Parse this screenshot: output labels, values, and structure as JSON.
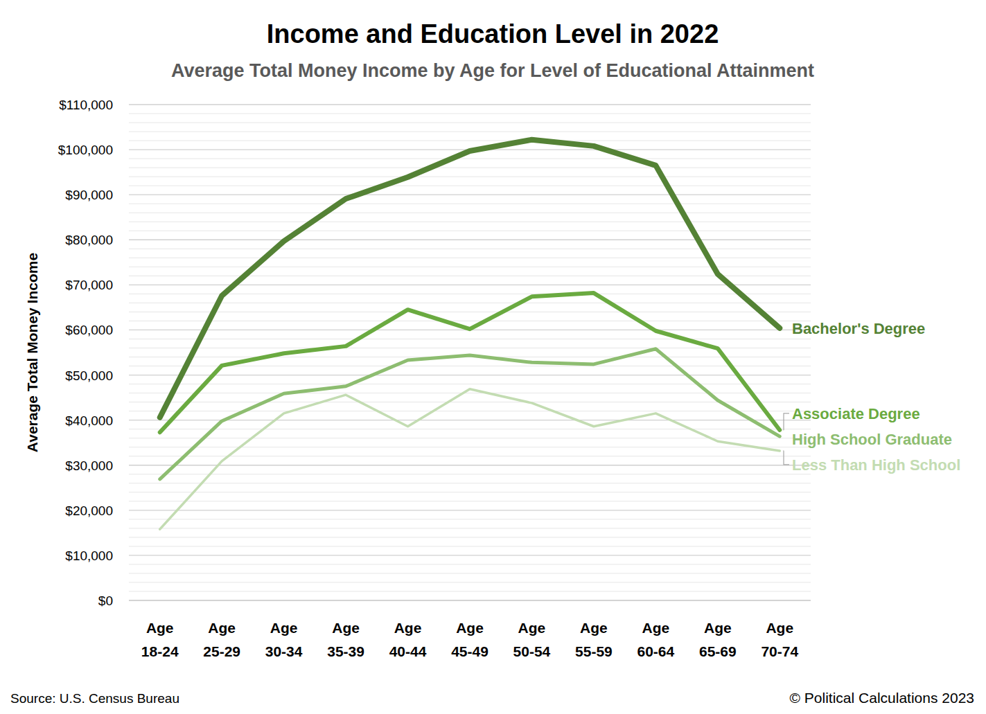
{
  "chart_data": {
    "type": "line",
    "title": "Income and Education Level in 2022",
    "subtitle": "Average Total Money Income by Age for Level of Educational Attainment",
    "y_label": "Average Total Money Income",
    "source": "Source: U.S. Census Bureau",
    "credit": "© Political Calculations 2023",
    "categories": [
      "Age 18-24",
      "Age 25-29",
      "Age 30-34",
      "Age 35-39",
      "Age 40-44",
      "Age 45-49",
      "Age 50-54",
      "Age 55-59",
      "Age 60-64",
      "Age 65-69",
      "Age 70-74"
    ],
    "series": [
      {
        "name": "Bachelor's Degree",
        "color": "#548235",
        "values": [
          40600,
          67600,
          79700,
          89100,
          93900,
          99700,
          102200,
          100800,
          96500,
          72400,
          60400
        ]
      },
      {
        "name": "Associate Degree",
        "color": "#6aaa40",
        "values": [
          37300,
          52100,
          54800,
          56400,
          64500,
          60200,
          67400,
          68200,
          59800,
          55900,
          37800
        ]
      },
      {
        "name": "High School Graduate",
        "color": "#8dbd70",
        "values": [
          26900,
          39800,
          45900,
          47500,
          53300,
          54400,
          52800,
          52400,
          55800,
          44400,
          36400
        ]
      },
      {
        "name": "Less Than High School",
        "color": "#c3dcb2",
        "values": [
          15800,
          30900,
          41500,
          45600,
          38600,
          46900,
          43800,
          38600,
          41500,
          35300,
          33200
        ]
      }
    ],
    "ylim": [
      0,
      110000
    ],
    "yticks": [
      {
        "value": 0,
        "label": "$0"
      },
      {
        "value": 10000,
        "label": "$10,000"
      },
      {
        "value": 20000,
        "label": "$20,000"
      },
      {
        "value": 30000,
        "label": "$30,000"
      },
      {
        "value": 40000,
        "label": "$40,000"
      },
      {
        "value": 50000,
        "label": "$50,000"
      },
      {
        "value": 60000,
        "label": "$60,000"
      },
      {
        "value": 70000,
        "label": "$70,000"
      },
      {
        "value": 80000,
        "label": "$80,000"
      },
      {
        "value": 90000,
        "label": "$90,000"
      },
      {
        "value": 100000,
        "label": "$100,000"
      },
      {
        "value": 110000,
        "label": "$110,000"
      }
    ],
    "grid": true
  }
}
